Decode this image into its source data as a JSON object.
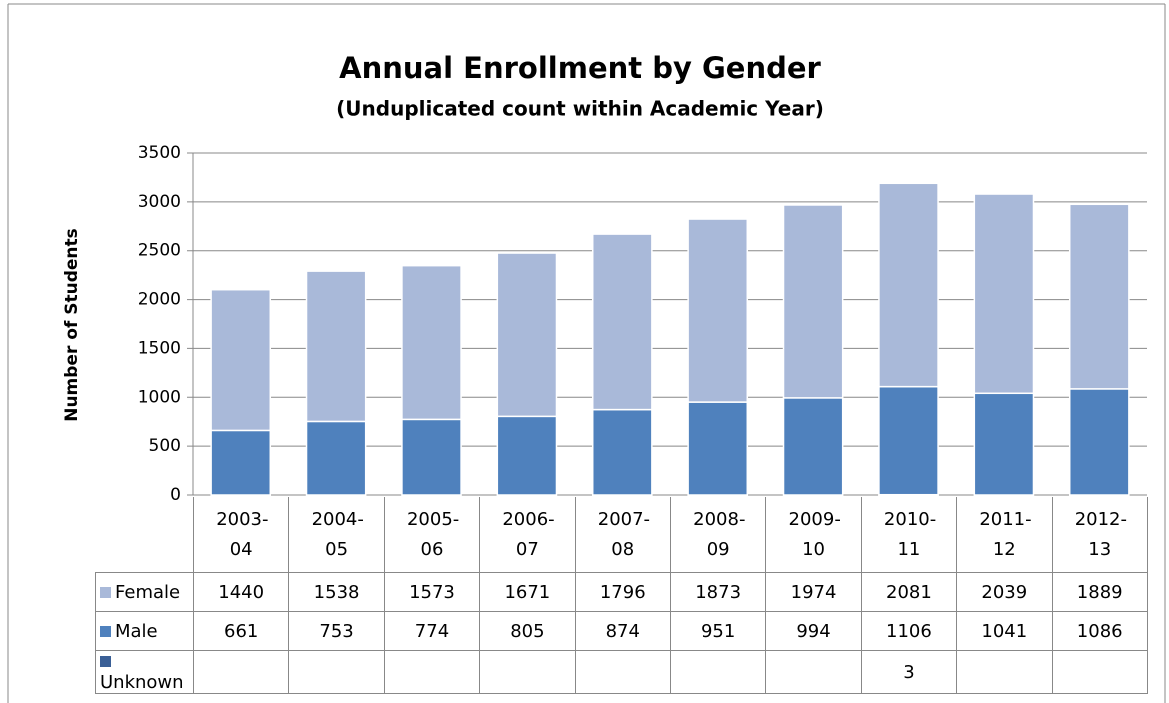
{
  "chart_data": {
    "type": "stacked_bar",
    "title": "Annual Enrollment by Gender",
    "subtitle": "(Unduplicated count within Academic Year)",
    "y_axis_label": "Number of Students",
    "categories": [
      "2003-04",
      "2004-05",
      "2005-06",
      "2006-07",
      "2007-08",
      "2008-09",
      "2009-10",
      "2010-11",
      "2011-12",
      "2012-13"
    ],
    "series": [
      {
        "name": "Female",
        "color": "#a9b9d9",
        "values": [
          1440,
          1538,
          1573,
          1671,
          1796,
          1873,
          1974,
          2081,
          2039,
          1889
        ]
      },
      {
        "name": "Male",
        "color": "#4f81bd",
        "values": [
          661,
          753,
          774,
          805,
          874,
          951,
          994,
          1106,
          1041,
          1086
        ]
      },
      {
        "name": "Unknown",
        "color": "#3a5f96",
        "values": [
          null,
          null,
          null,
          null,
          null,
          null,
          null,
          3,
          null,
          null
        ]
      }
    ],
    "ylim": [
      0,
      3500
    ],
    "yticks": [
      0,
      500,
      1000,
      1500,
      2000,
      2500,
      3000,
      3500
    ],
    "grid": true
  }
}
